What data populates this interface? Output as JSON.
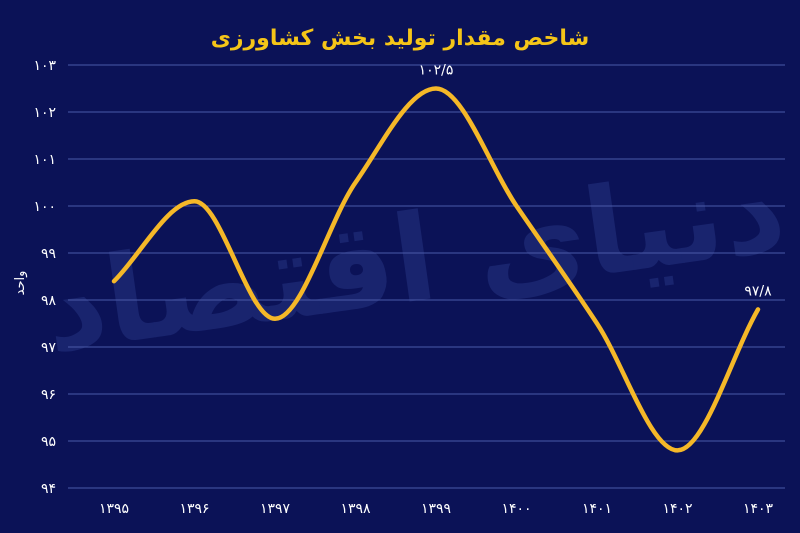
{
  "chart_data": {
    "type": "line",
    "title": "شاخص مقدار تولید بخش کشاورزی",
    "ylabel": "واحد",
    "xlabel": "",
    "categories": [
      "۱۳۹۵",
      "۱۳۹۶",
      "۱۳۹۷",
      "۱۳۹۸",
      "۱۳۹۹",
      "۱۴۰۰",
      "۱۴۰۱",
      "۱۴۰۲",
      "۱۴۰۳"
    ],
    "series": [
      {
        "values": [
          98.4,
          100.1,
          97.6,
          100.5,
          102.5,
          100.0,
          97.5,
          94.8,
          97.8
        ]
      }
    ],
    "ylim": [
      94,
      103
    ],
    "yticks": [
      94,
      95,
      96,
      97,
      98,
      99,
      100,
      101,
      102,
      103
    ],
    "ytick_labels": [
      "۹۴",
      "۹۵",
      "۹۶",
      "۹۷",
      "۹۸",
      "۹۹",
      "۱۰۰",
      "۱۰۱",
      "۱۰۲",
      "۱۰۳"
    ],
    "data_labels": [
      {
        "index": 4,
        "text": "۱۰۲/۵"
      },
      {
        "index": 8,
        "text": "۹۷/۸"
      }
    ],
    "grid": "horizontal",
    "line_color": "#f5b828",
    "grid_color": "#4a5aa8",
    "background": "#0b1257",
    "title_color": "#f5c518",
    "watermark": "دنیای اقتصاد"
  }
}
